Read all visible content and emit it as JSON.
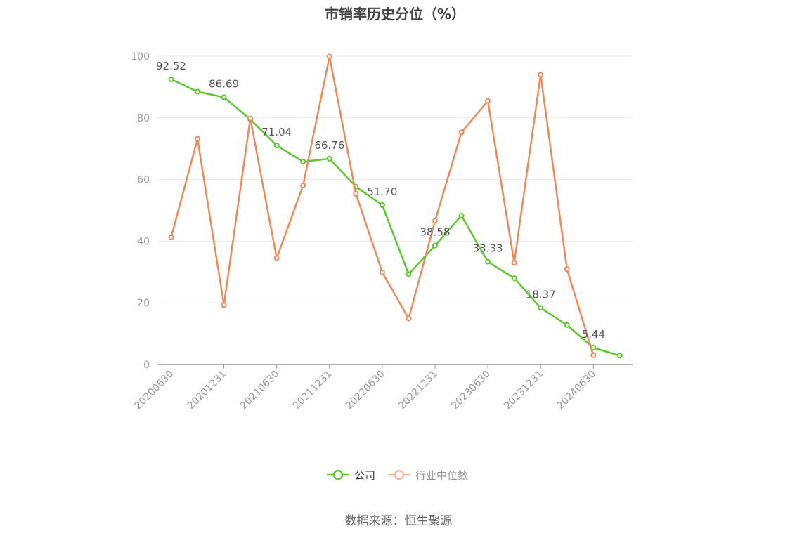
{
  "chart_data": {
    "type": "line",
    "title": "市销率历史分位（%）",
    "ylim": [
      0,
      100
    ],
    "yticks": [
      0,
      20,
      40,
      60,
      80,
      100
    ],
    "grid": true,
    "legend_position": "bottom",
    "categories": [
      "20200630",
      "20200930",
      "20201231",
      "20210331",
      "20210630",
      "20210930",
      "20211231",
      "20220331",
      "20220630",
      "20220930",
      "20221231",
      "20230331",
      "20230630",
      "20230930",
      "20231231",
      "20240331",
      "20240630",
      "20240930"
    ],
    "xtick_labels": [
      "20200630",
      "20201231",
      "20210630",
      "20211231",
      "20220630",
      "20221231",
      "20230630",
      "20231231",
      "20240630"
    ],
    "series": [
      {
        "name": "公司",
        "color": "#5cc72e",
        "values": [
          92.52,
          88.5,
          86.69,
          79.5,
          71.04,
          65.8,
          66.76,
          57.7,
          51.7,
          29.3,
          38.58,
          48.3,
          33.33,
          28.0,
          18.37,
          12.8,
          5.44,
          2.9
        ]
      },
      {
        "name": "行业中位数",
        "color": "#f0895a",
        "values": [
          41.3,
          73.2,
          19.3,
          79.8,
          34.5,
          58.1,
          99.9,
          55.4,
          29.9,
          14.9,
          46.6,
          75.3,
          85.5,
          33.0,
          94.0,
          30.9,
          3.0,
          null
        ]
      }
    ],
    "data_labels": [
      {
        "series": 0,
        "index": 0,
        "text": "92.52"
      },
      {
        "series": 0,
        "index": 2,
        "text": "86.69"
      },
      {
        "series": 0,
        "index": 4,
        "text": "71.04"
      },
      {
        "series": 0,
        "index": 6,
        "text": "66.76"
      },
      {
        "series": 0,
        "index": 8,
        "text": "51.70"
      },
      {
        "series": 0,
        "index": 10,
        "text": "38.58"
      },
      {
        "series": 0,
        "index": 12,
        "text": "33.33"
      },
      {
        "series": 0,
        "index": 14,
        "text": "18.37"
      },
      {
        "series": 0,
        "index": 16,
        "text": "5.44"
      }
    ]
  },
  "legend": {
    "items": [
      {
        "label": "公司",
        "color": "#5cc72e",
        "text_color": "#333333"
      },
      {
        "label": "行业中位数",
        "color": "#f7b89f",
        "text_color": "#999999"
      }
    ]
  },
  "source": "数据来源：恒生聚源"
}
